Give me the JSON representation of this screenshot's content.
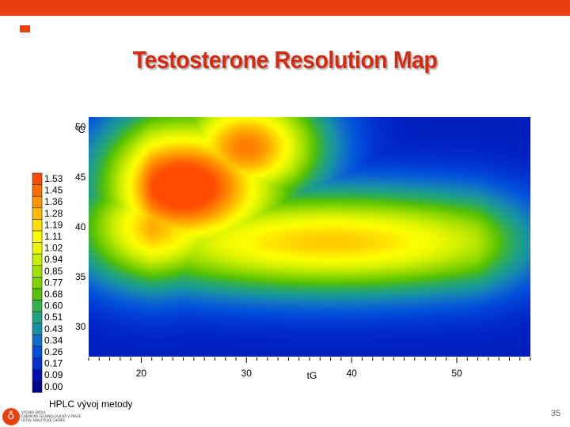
{
  "slide": {
    "title": "Testosterone Resolution Map",
    "subtitle": "HPLC vývoj metody",
    "page_number": "35",
    "logo_text": [
      "VYSOKÁ ŠKOLA",
      "CHEMICKO-TECHNOLOGICKÁ V PRAZE",
      "ÚSTAV ANALYTICKÉ CHEMIE"
    ],
    "accent_color": "#e8400f"
  },
  "chart_data": {
    "type": "heatmap",
    "title": "Testosterone Resolution Map",
    "xlabel": "tG",
    "ylabel": "°C",
    "xlim": [
      15,
      57
    ],
    "ylim": [
      27,
      51
    ],
    "x_ticks": [
      20,
      30,
      40,
      50
    ],
    "y_ticks": [
      30,
      35,
      40,
      45,
      50
    ],
    "legend_levels": [
      "1.53",
      "1.45",
      "1.36",
      "1.28",
      "1.19",
      "1.11",
      "1.02",
      "0.94",
      "0.85",
      "0.77",
      "0.68",
      "0.60",
      "0.51",
      "0.43",
      "0.34",
      "0.26",
      "0.17",
      "0.09",
      "0.00"
    ],
    "legend_colors": [
      "#ff4a00",
      "#ff7000",
      "#ff9500",
      "#ffba00",
      "#ffe000",
      "#ffff00",
      "#e8f800",
      "#c8ee00",
      "#a5e000",
      "#7ed200",
      "#55c200",
      "#35b04a",
      "#20a280",
      "#1890a8",
      "#1070c8",
      "#0050dc",
      "#0030d0",
      "#0010b0",
      "#000090"
    ],
    "surface": [
      {
        "x": 24,
        "y": 44,
        "value": 1.53,
        "spread_x": 7,
        "spread_y": 5
      },
      {
        "x": 30,
        "y": 48,
        "value": 1.3,
        "spread_x": 5,
        "spread_y": 4
      },
      {
        "x": 38,
        "y": 38.5,
        "value": 1.12,
        "spread_x": 16,
        "spread_y": 3.5
      },
      {
        "x": 20,
        "y": 40,
        "value": 1.2,
        "spread_x": 7,
        "spread_y": 4
      }
    ]
  }
}
